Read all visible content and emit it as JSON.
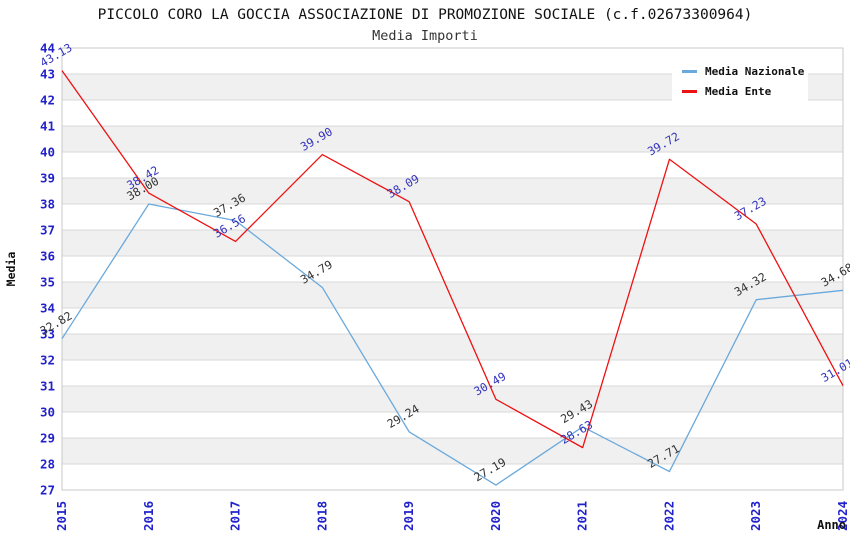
{
  "header": {
    "title": "PICCOLO CORO LA GOCCIA ASSOCIAZIONE DI PROMOZIONE SOCIALE (c.f.02673300964)",
    "subtitle": "Media Importi"
  },
  "chart_data": {
    "type": "line",
    "title": "PICCOLO CORO LA GOCCIA ASSOCIAZIONE DI PROMOZIONE SOCIALE (c.f.02673300964)",
    "subtitle": "Media Importi",
    "xlabel": "Anno",
    "ylabel": "Media",
    "categories": [
      "2015",
      "2016",
      "2017",
      "2018",
      "2019",
      "2020",
      "2021",
      "2022",
      "2023",
      "2024"
    ],
    "series": [
      {
        "name": "Media Nazionale",
        "color": "#6aa9dc",
        "label_color": "#333333",
        "values": [
          32.82,
          38.0,
          37.36,
          34.79,
          29.24,
          27.19,
          29.43,
          27.71,
          34.32,
          34.68
        ]
      },
      {
        "name": "Media Ente",
        "color": "#ee1111",
        "label_color": "#3434bb",
        "values": [
          43.13,
          38.42,
          36.56,
          39.9,
          38.09,
          30.49,
          28.63,
          39.72,
          37.23,
          31.01
        ]
      }
    ],
    "ylim": [
      27,
      44
    ],
    "y_tick_step": 1,
    "grid": true,
    "legend_position": "top-right",
    "colors": {
      "axis_tick": "#2222cc",
      "band": "#f0f0f0",
      "gridline": "#d9d9d9",
      "plot_border": "#c9c9c9",
      "axis_title": "#111111"
    }
  }
}
